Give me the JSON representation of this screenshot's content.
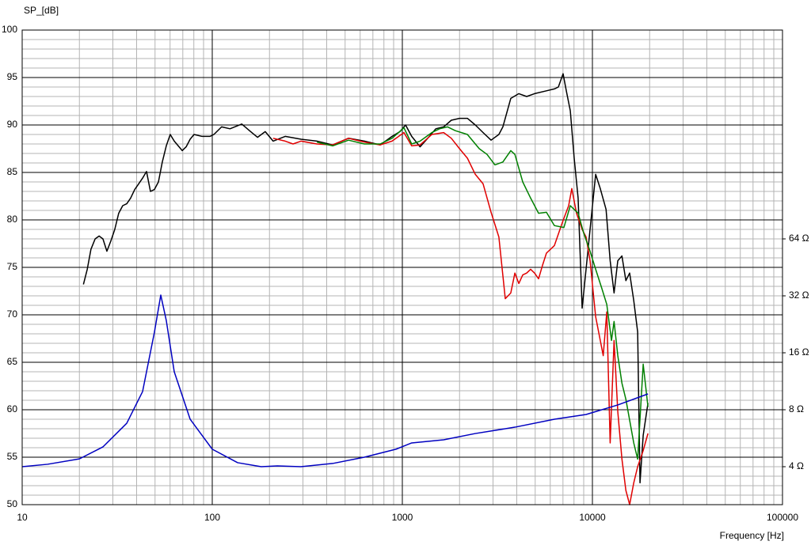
{
  "chart_data": {
    "type": "line",
    "y_label": "SP_[dB]",
    "x_label": "Frequency [Hz]",
    "xscale": "log",
    "y2scale": "log",
    "grid": true,
    "xlim": [
      10,
      100000
    ],
    "ylim": [
      50,
      100
    ],
    "y2lim": [
      2.52,
      812.7
    ],
    "xticks": [
      10,
      100,
      1000,
      10000,
      100000
    ],
    "xminorticks": [
      20,
      30,
      40,
      50,
      60,
      70,
      80,
      90,
      200,
      300,
      400,
      500,
      600,
      700,
      800,
      900,
      2000,
      3000,
      4000,
      5000,
      6000,
      7000,
      8000,
      9000,
      20000,
      30000,
      40000,
      50000,
      60000,
      70000,
      80000,
      90000
    ],
    "yticks": [
      50,
      55,
      60,
      65,
      70,
      75,
      80,
      85,
      90,
      95,
      100
    ],
    "yminorticks": [
      51,
      52,
      53,
      54,
      56,
      57,
      58,
      59,
      61,
      62,
      63,
      64,
      66,
      67,
      68,
      69,
      71,
      72,
      73,
      74,
      76,
      77,
      78,
      79,
      81,
      82,
      83,
      84,
      86,
      87,
      88,
      89,
      91,
      92,
      93,
      94,
      96,
      97,
      98,
      99
    ],
    "y2ticks": [
      {
        "value": 4,
        "label": "4 Ω"
      },
      {
        "value": 8,
        "label": "8 Ω"
      },
      {
        "value": 16,
        "label": "16 Ω"
      },
      {
        "value": 32,
        "label": "32 Ω"
      },
      {
        "value": 64,
        "label": "64 Ω"
      }
    ],
    "series": [
      {
        "color": "#000000",
        "x": [
          21,
          22,
          23.0,
          24.2,
          25.4,
          26.6,
          27.9,
          29.3,
          30.7,
          32.2,
          33.8,
          35.5,
          37.2,
          39.1,
          41.0,
          43.0,
          45.1,
          47.3,
          49.6,
          52.1,
          54.6,
          57.3,
          60.1,
          63.1,
          69.5,
          72.9,
          76.5,
          80.2,
          88.3,
          97.2,
          102,
          112,
          124,
          143,
          157,
          173,
          190,
          209,
          242,
          293,
          355,
          430,
          521,
          631,
          765,
          883,
          972,
          1040,
          1120,
          1240,
          1360,
          1500,
          1650,
          1810,
          2000,
          2200,
          2420,
          2660,
          2930,
          3220,
          3380,
          3720,
          4100,
          4510,
          4960,
          5730,
          6310,
          6620,
          7010,
          7290,
          7650,
          8020,
          8410,
          8830,
          9260,
          9720,
          10400,
          11000,
          11800,
          12400,
          13000,
          13600,
          14300,
          15000,
          15700,
          16500,
          17300,
          17800,
          18500,
          19600
        ],
        "values": [
          73.2,
          74.8,
          76.9,
          78.0,
          78.3,
          78.0,
          76.7,
          77.8,
          79.0,
          80.7,
          81.5,
          81.7,
          82.3,
          83.2,
          83.8,
          84.4,
          85.1,
          83.0,
          83.2,
          84.0,
          86.1,
          87.8,
          89.0,
          88.3,
          87.3,
          87.7,
          88.5,
          89.0,
          88.8,
          88.8,
          89.0,
          89.8,
          89.6,
          90.1,
          89.4,
          88.7,
          89.3,
          88.3,
          88.8,
          88.5,
          88.3,
          87.9,
          88.6,
          88.3,
          87.9,
          88.8,
          89.3,
          90.0,
          88.8,
          87.7,
          88.6,
          89.6,
          89.8,
          90.5,
          90.7,
          90.7,
          90.0,
          89.2,
          88.4,
          89.0,
          89.8,
          92.8,
          93.3,
          93.0,
          93.3,
          93.6,
          93.8,
          94.0,
          95.4,
          93.6,
          91.5,
          86.5,
          82.3,
          70.7,
          74.8,
          79.0,
          84.8,
          83.3,
          81.1,
          75.7,
          72.3,
          75.7,
          76.2,
          73.6,
          74.4,
          71.5,
          68.2,
          52.3,
          57.3,
          60.7
        ]
      },
      {
        "color": "#e00000",
        "x": [
          209,
          242,
          266,
          293,
          355,
          430,
          521,
          631,
          765,
          883,
          1020,
          1120,
          1240,
          1430,
          1650,
          1810,
          2000,
          2200,
          2420,
          2660,
          2930,
          3220,
          3480,
          3720,
          3910,
          4100,
          4300,
          4510,
          4730,
          4960,
          5210,
          5460,
          5730,
          6310,
          6940,
          7500,
          7790,
          8250,
          8830,
          9260,
          9720,
          10400,
          11000,
          11400,
          11900,
          12400,
          13000,
          13600,
          14300,
          15000,
          15700,
          16500,
          17300,
          18500,
          19600
        ],
        "values": [
          88.6,
          88.3,
          88.0,
          88.3,
          88.0,
          87.9,
          88.6,
          88.2,
          87.9,
          88.3,
          89.2,
          87.8,
          87.9,
          89.0,
          89.2,
          88.6,
          87.5,
          86.5,
          84.8,
          83.8,
          80.8,
          78.2,
          71.7,
          72.3,
          74.4,
          73.3,
          74.2,
          74.4,
          74.8,
          74.4,
          73.8,
          75.2,
          76.5,
          77.3,
          79.7,
          81.5,
          83.3,
          80.7,
          79.0,
          78.2,
          75.7,
          69.8,
          67.3,
          65.7,
          70.3,
          56.5,
          67.3,
          59.8,
          54.8,
          51.5,
          50.0,
          52.3,
          54.0,
          55.7,
          57.5
        ]
      },
      {
        "color": "#008000",
        "x": [
          355,
          430,
          521,
          631,
          765,
          883,
          1020,
          1120,
          1240,
          1430,
          1570,
          1730,
          1900,
          2200,
          2540,
          2790,
          3070,
          3380,
          3720,
          3910,
          4300,
          4730,
          5210,
          5730,
          6310,
          7080,
          7650,
          8020,
          8410,
          9000,
          9720,
          10400,
          11200,
          11900,
          12600,
          13000,
          13600,
          14300,
          15000,
          16500,
          17300,
          18500,
          19600
        ],
        "values": [
          88.2,
          87.8,
          88.4,
          88.0,
          88.0,
          88.6,
          89.7,
          88.0,
          88.3,
          89.2,
          89.6,
          89.8,
          89.4,
          89.0,
          87.5,
          86.9,
          85.8,
          86.1,
          87.3,
          86.9,
          84.0,
          82.3,
          80.7,
          80.8,
          79.4,
          79.2,
          81.5,
          81.1,
          80.7,
          78.6,
          76.7,
          74.8,
          72.8,
          71.1,
          67.3,
          69.3,
          65.7,
          62.8,
          61.1,
          56.5,
          54.8,
          64.8,
          60.3
        ]
      },
      {
        "color": "#0000c0",
        "axis": "y2",
        "x": [
          10,
          13.6,
          20.0,
          26.6,
          35.5,
          43.0,
          49.6,
          53.6,
          57.3,
          63.1,
          76.5,
          100,
          136,
          181,
          220,
          293,
          430,
          631,
          926,
          1120,
          1650,
          2420,
          3910,
          6310,
          9260,
          13600,
          19600
        ],
        "values": [
          4.0,
          4.12,
          4.4,
          5.09,
          6.79,
          9.98,
          20.5,
          32.3,
          23.7,
          12.7,
          7.13,
          4.95,
          4.2,
          4.0,
          4.04,
          4.0,
          4.16,
          4.49,
          4.95,
          5.34,
          5.55,
          5.99,
          6.47,
          7.13,
          7.55,
          8.48,
          9.7
        ]
      }
    ]
  }
}
